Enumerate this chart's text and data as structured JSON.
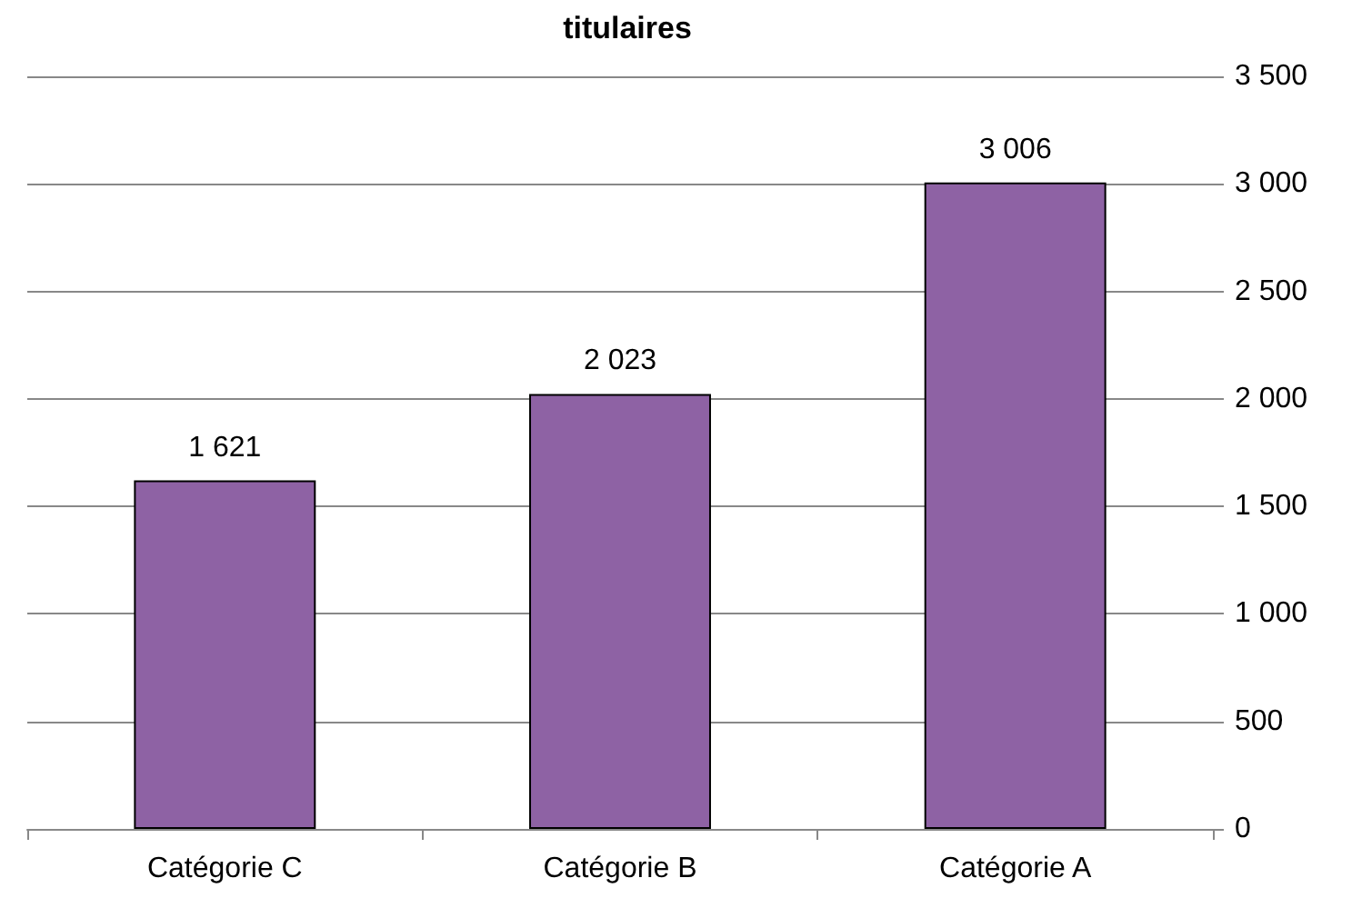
{
  "chart_data": {
    "type": "bar",
    "title": "titulaires",
    "categories": [
      "Catégorie C",
      "Catégorie B",
      "Catégorie A"
    ],
    "values": [
      1621,
      2023,
      3006
    ],
    "value_labels": [
      "1 621",
      "2 023",
      "3 006"
    ],
    "color": "#8e62a4",
    "ylim": [
      0,
      3500
    ],
    "yticks": [
      {
        "value": 0,
        "label": "0"
      },
      {
        "value": 500,
        "label": "500"
      },
      {
        "value": 1000,
        "label": "1 000"
      },
      {
        "value": 1500,
        "label": "1 500"
      },
      {
        "value": 2000,
        "label": "2 000"
      },
      {
        "value": 2500,
        "label": "2 500"
      },
      {
        "value": 3000,
        "label": "3 000"
      },
      {
        "value": 3500,
        "label": "3 500"
      }
    ],
    "grid": "y"
  }
}
